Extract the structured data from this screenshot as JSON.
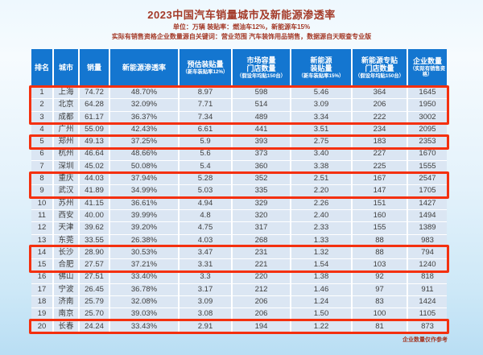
{
  "title": "2023中国汽车销量城市及新能源渗透率",
  "subtitle_line1": "单位：万辆  装贴率：燃油车12%，新能源车15%",
  "subtitle_line2": "实际有销售资格企业数量源自关键词：营业范围 汽车装饰用品销售，数据源自天眼查专业版",
  "footer_note": "企业数量仅作参考",
  "colors": {
    "header_bg": "#1476d0",
    "row_bg": "#dbe6f3",
    "accent_text": "#a43a28",
    "highlight_border": "#f4300f"
  },
  "chart_data": {
    "type": "table",
    "title": "2023中国汽车销量城市及新能源渗透率",
    "columns": [
      {
        "main": "排名",
        "sub": ""
      },
      {
        "main": "城市",
        "sub": ""
      },
      {
        "main": "销量",
        "sub": ""
      },
      {
        "main": "新能源渗透率",
        "sub": ""
      },
      {
        "main": "预估装贴量",
        "sub": "（新车装贴率12%）"
      },
      {
        "main": "市场容量\n门店数量",
        "sub": "（假设年均贴150台）"
      },
      {
        "main": "新能源\n装贴量",
        "sub": "（新车装贴率15%）"
      },
      {
        "main": "新能源专贴\n门店数量",
        "sub": "（假设年均贴150台）"
      },
      {
        "main": "企业数量",
        "sub": "（实际有销售资格）"
      }
    ],
    "rows": [
      [
        "1",
        "上海",
        "74.72",
        "48.70%",
        "8.97",
        "598",
        "5.46",
        "364",
        "1645"
      ],
      [
        "2",
        "北京",
        "64.28",
        "32.09%",
        "7.71",
        "514",
        "3.09",
        "206",
        "1950"
      ],
      [
        "3",
        "成都",
        "61.17",
        "36.37%",
        "7.34",
        "489",
        "3.34",
        "222",
        "3002"
      ],
      [
        "4",
        "广州",
        "55.09",
        "42.43%",
        "6.61",
        "441",
        "3.51",
        "234",
        "2095"
      ],
      [
        "5",
        "郑州",
        "49.13",
        "37.25%",
        "5.9",
        "393",
        "2.75",
        "183",
        "2353"
      ],
      [
        "6",
        "杭州",
        "46.64",
        "48.66%",
        "5.6",
        "373",
        "3.40",
        "227",
        "1670"
      ],
      [
        "7",
        "深圳",
        "45.02",
        "50.08%",
        "5.4",
        "360",
        "3.38",
        "225",
        "1555"
      ],
      [
        "8",
        "重庆",
        "44.03",
        "37.94%",
        "5.28",
        "352",
        "2.51",
        "167",
        "2547"
      ],
      [
        "9",
        "武汉",
        "41.89",
        "34.99%",
        "5.03",
        "335",
        "2.20",
        "147",
        "1705"
      ],
      [
        "10",
        "苏州",
        "41.15",
        "36.61%",
        "4.94",
        "329",
        "2.26",
        "151",
        "1427"
      ],
      [
        "11",
        "西安",
        "40.00",
        "39.99%",
        "4.8",
        "320",
        "2.40",
        "160",
        "1494"
      ],
      [
        "12",
        "天津",
        "39.62",
        "39.20%",
        "4.75",
        "317",
        "2.33",
        "155",
        "1389"
      ],
      [
        "13",
        "东莞",
        "33.55",
        "26.38%",
        "4.03",
        "268",
        "1.33",
        "88",
        "983"
      ],
      [
        "14",
        "长沙",
        "28.90",
        "30.53%",
        "3.47",
        "231",
        "1.32",
        "88",
        "794"
      ],
      [
        "15",
        "合肥",
        "27.57",
        "37.21%",
        "3.31",
        "221",
        "1.54",
        "103",
        "1240"
      ],
      [
        "16",
        "佛山",
        "27.51",
        "33.40%",
        "3.3",
        "220",
        "1.38",
        "92",
        "818"
      ],
      [
        "17",
        "宁波",
        "26.45",
        "36.78%",
        "3.17",
        "212",
        "1.46",
        "97",
        "911"
      ],
      [
        "18",
        "济南",
        "25.79",
        "32.08%",
        "3.09",
        "206",
        "1.24",
        "83",
        "1424"
      ],
      [
        "19",
        "南京",
        "25.70",
        "39.03%",
        "3.08",
        "206",
        "1.50",
        "100",
        "1105"
      ],
      [
        "20",
        "长春",
        "24.24",
        "33.43%",
        "2.91",
        "194",
        "1.22",
        "81",
        "873"
      ]
    ],
    "highlighted_rank_groups": [
      [
        1,
        3
      ],
      [
        5,
        5
      ],
      [
        8,
        9
      ],
      [
        14,
        15
      ],
      [
        20,
        20
      ]
    ],
    "footer": "企业数量仅作参考"
  }
}
